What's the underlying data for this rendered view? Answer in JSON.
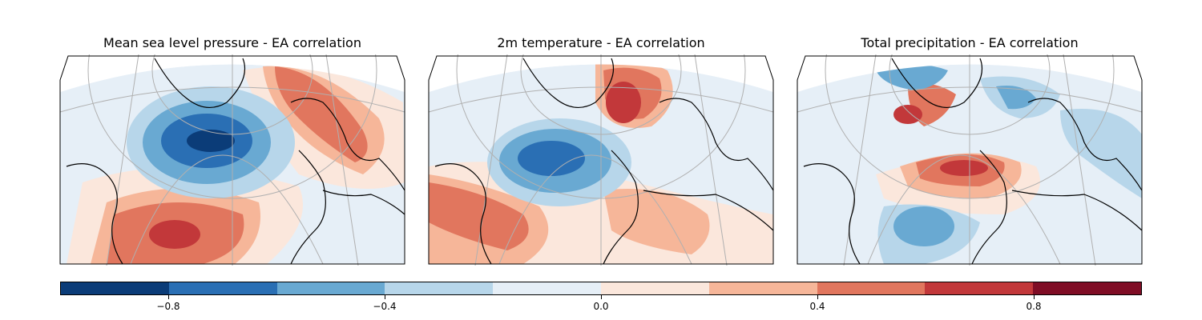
{
  "panels": [
    {
      "title": "Mean sea level pressure - EA correlation"
    },
    {
      "title": "2m temperature - EA correlation"
    },
    {
      "title": "Total precipitation - EA correlation"
    }
  ],
  "colorbar": {
    "colors": [
      "#0b3c78",
      "#2a6fb4",
      "#69a9d2",
      "#b7d6ea",
      "#e6eff7",
      "#fbe7dc",
      "#f6b699",
      "#e1765e",
      "#c2383a",
      "#7f0d25"
    ],
    "ticks": [
      "−0.8",
      "−0.4",
      "0.0",
      "0.4",
      "0.8"
    ],
    "tick_values": [
      -0.8,
      -0.4,
      0.0,
      0.4,
      0.8
    ],
    "range": [
      -1.0,
      1.0
    ]
  },
  "palette": {
    "land_outline": "#000000",
    "graticule": "#b0b0b0"
  }
}
